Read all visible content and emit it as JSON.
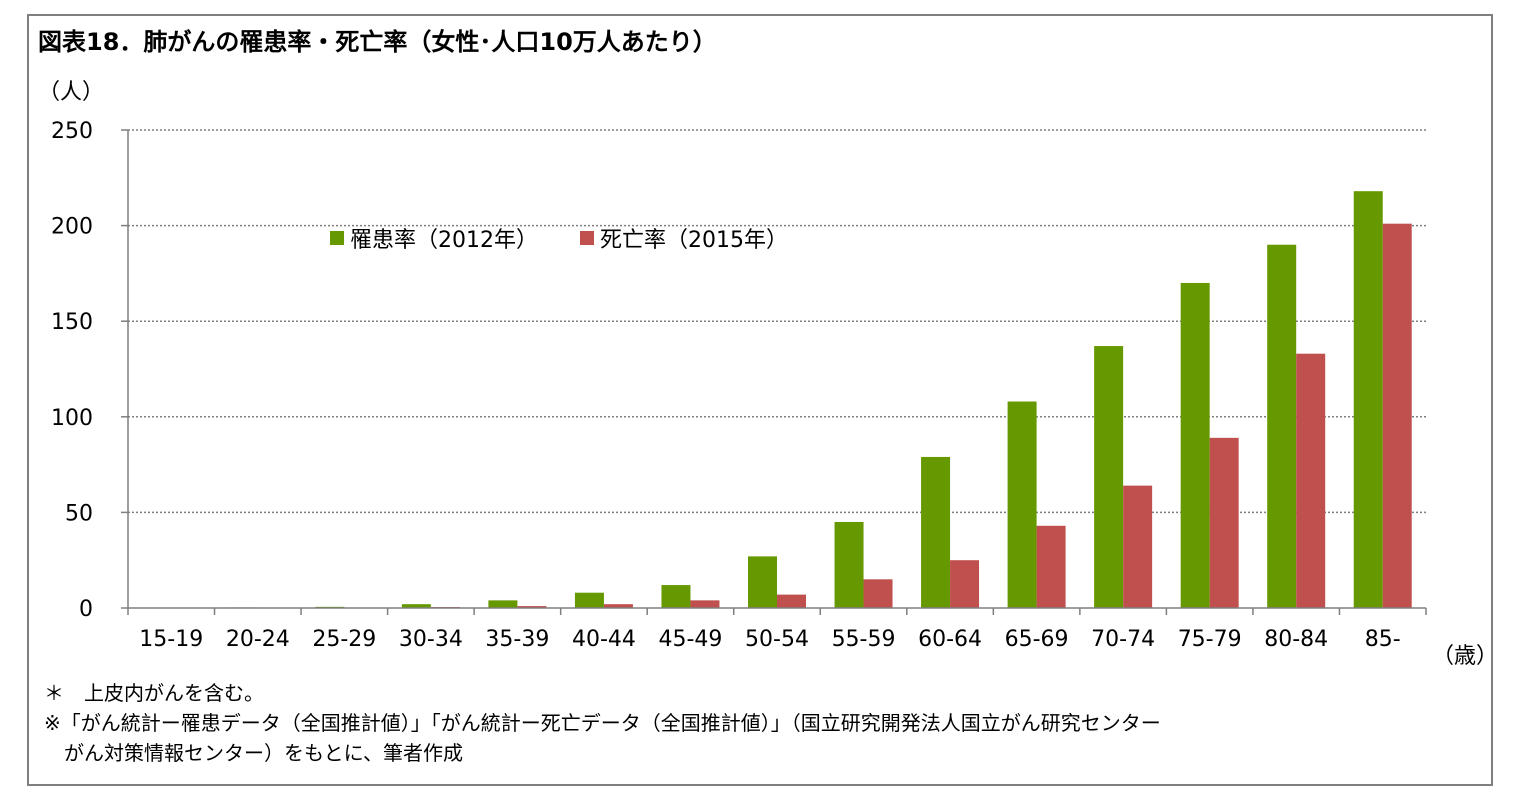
{
  "title": "図表18．肺がんの罹患率・死亡率（女性･人口10万人あたり）",
  "y_unit": "（人）",
  "x_unit": "（歳）",
  "notes": [
    "＊　上皮内がんを含む。",
    "※「がん統計ー罹患データ（全国推計値）」「がん統計ー死亡データ（全国推計値）」（国立研究開発法人国立がん研究センター",
    "　がん対策情報センター）をもとに、筆者作成"
  ],
  "chart_data": {
    "type": "bar",
    "categories": [
      "15-19",
      "20-24",
      "25-29",
      "30-34",
      "35-39",
      "40-44",
      "45-49",
      "50-54",
      "55-59",
      "60-64",
      "65-69",
      "70-74",
      "75-79",
      "80-84",
      "85-"
    ],
    "series": [
      {
        "name": "罹患率（2012年）",
        "color": "#669900",
        "values": [
          0.1,
          0.3,
          0.6,
          2,
          4,
          8,
          12,
          27,
          45,
          79,
          108,
          137,
          170,
          190,
          218
        ]
      },
      {
        "name": "死亡率（2015年）",
        "color": "#c0504d",
        "values": [
          0,
          0.1,
          0.2,
          0.5,
          1,
          2,
          4,
          7,
          15,
          25,
          43,
          64,
          89,
          133,
          201
        ]
      }
    ],
    "ylim": [
      0,
      250
    ],
    "yticks": [
      0,
      50,
      100,
      150,
      200,
      250
    ],
    "grid": true,
    "legend_position": "top-left"
  }
}
